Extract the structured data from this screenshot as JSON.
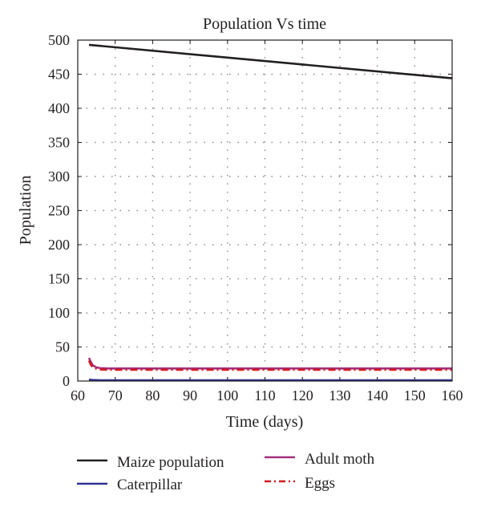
{
  "chart_data": {
    "type": "line",
    "title": "Population Vs time",
    "xlabel": "Time (days)",
    "ylabel": "Population",
    "xlim": [
      60,
      160
    ],
    "ylim": [
      0,
      500
    ],
    "xticks": [
      60,
      70,
      80,
      90,
      100,
      110,
      120,
      130,
      140,
      150,
      160
    ],
    "yticks": [
      0,
      50,
      100,
      150,
      200,
      250,
      300,
      350,
      400,
      450,
      500
    ],
    "grid": true,
    "legend_position": "bottom",
    "series": [
      {
        "name": "Maize population",
        "color": "#231f20",
        "style": "solid",
        "x": [
          63,
          160
        ],
        "y": [
          493,
          444
        ]
      },
      {
        "name": "Caterpillar",
        "color": "#2e3192",
        "style": "solid",
        "x": [
          63,
          64,
          66,
          70,
          160
        ],
        "y": [
          2,
          1.5,
          1,
          1,
          1
        ]
      },
      {
        "name": "Adult moth",
        "color": "#a1307f",
        "style": "solid",
        "x": [
          63,
          63.5,
          64,
          65,
          66,
          68,
          70,
          160
        ],
        "y": [
          34,
          28,
          23,
          20,
          19,
          18.5,
          18.5,
          18.5
        ]
      },
      {
        "name": "Eggs",
        "color": "#d7191c",
        "style": "dashdot",
        "x": [
          63,
          63.5,
          64,
          65,
          66,
          68,
          70,
          160
        ],
        "y": [
          30,
          24,
          20,
          18,
          17,
          16.5,
          16.5,
          16.5
        ]
      }
    ]
  }
}
